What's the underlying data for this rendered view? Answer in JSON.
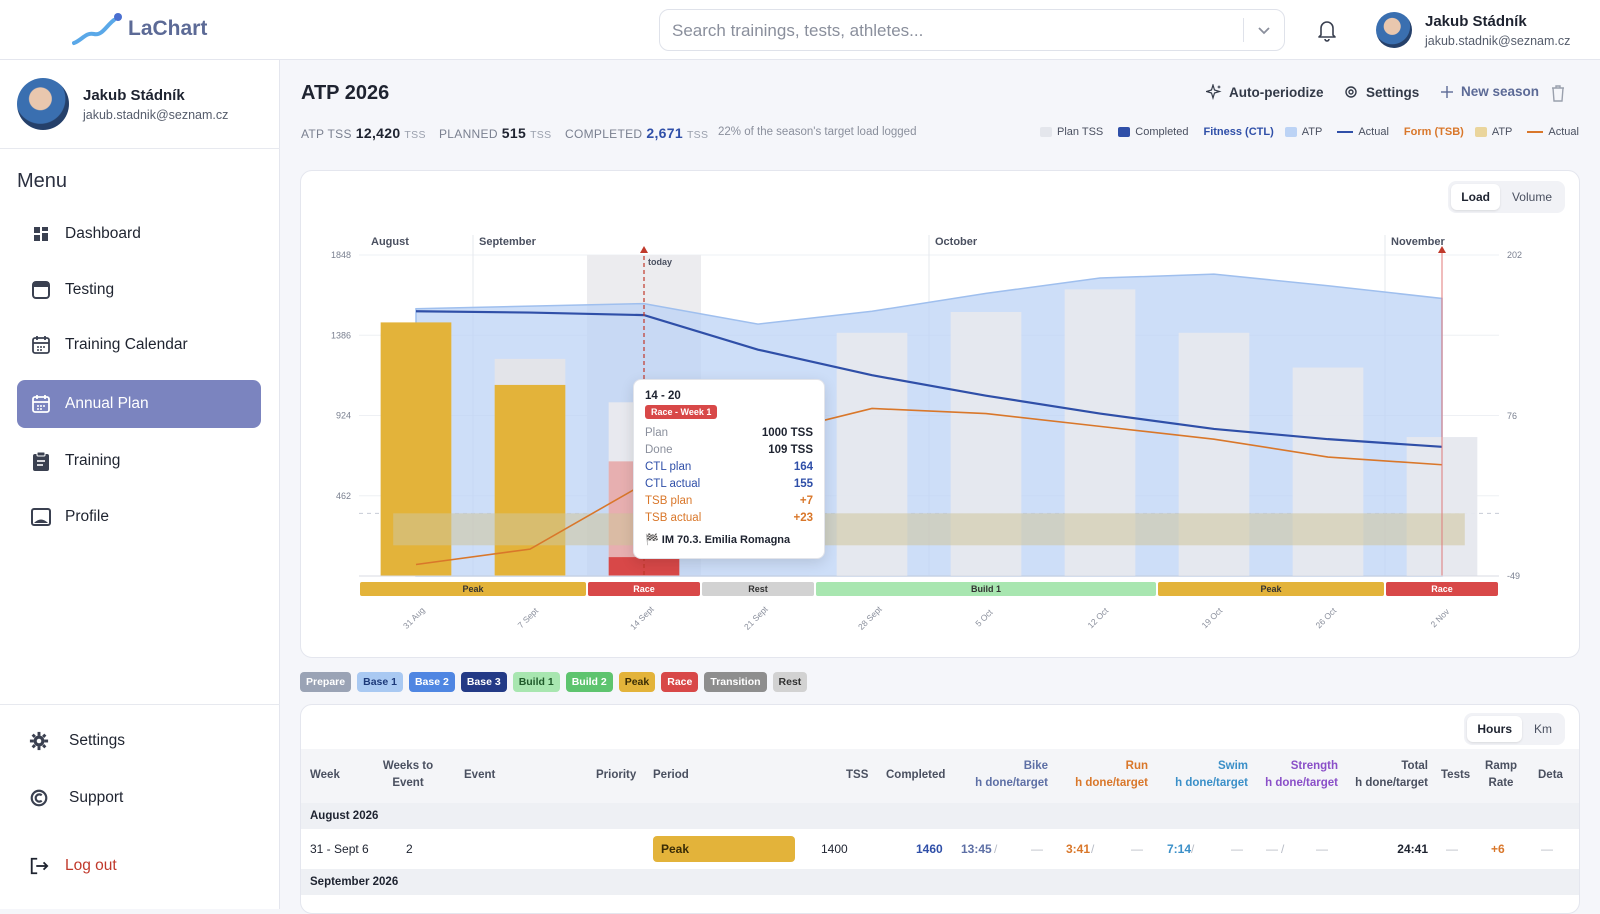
{
  "app": {
    "name": "LaChart"
  },
  "search": {
    "placeholder": "Search trainings, tests, athletes..."
  },
  "user": {
    "name": "Jakub Stádník",
    "email": "jakub.stadnik@seznam.cz"
  },
  "sidebar": {
    "menu_title": "Menu",
    "items": [
      {
        "label": "Dashboard",
        "icon": "dashboard-icon"
      },
      {
        "label": "Testing",
        "icon": "testing-icon"
      },
      {
        "label": "Training Calendar",
        "icon": "calendar-icon"
      },
      {
        "label": "Annual Plan",
        "icon": "calendar-icon",
        "active": true
      },
      {
        "label": "Training",
        "icon": "clipboard-icon"
      },
      {
        "label": "Profile",
        "icon": "profile-icon"
      }
    ],
    "bottom": [
      {
        "label": "Settings",
        "icon": "gear-icon"
      },
      {
        "label": "Support",
        "icon": "support-icon"
      },
      {
        "label": "Log out",
        "icon": "logout-icon"
      }
    ]
  },
  "page": {
    "title": "ATP 2026",
    "actions": {
      "autoperiodize": "Auto-periodize",
      "settings": "Settings",
      "new_season": "New season"
    },
    "stats": {
      "atp_label": "ATP TSS",
      "atp_value": "12,420",
      "unit": "TSS",
      "planned_label": "PLANNED",
      "planned_value": "515",
      "completed_label": "COMPLETED",
      "completed_value": "2,671",
      "note": "22% of the season's target load logged"
    },
    "legend": {
      "plan_tss": "Plan TSS",
      "completed": "Completed",
      "fitness": "Fitness (CTL)",
      "atp": "ATP",
      "actual": "Actual",
      "form": "Form (TSB)"
    },
    "chart_toggle": {
      "load": "Load",
      "volume": "Volume"
    }
  },
  "colors": {
    "accent": "#7b84bf",
    "peak": "#e3b33a",
    "race": "#d84848",
    "rest": "#d2d2d2",
    "build1": "#a8e6b0",
    "ctl": "#2f4fa8",
    "tsb": "#d9772a",
    "atp_fill": "#bcd3f5"
  },
  "chart_data": {
    "type": "bar",
    "months": [
      "August",
      "September",
      "October",
      "November"
    ],
    "categories": [
      "31 Aug",
      "7 Sept",
      "14 Sept",
      "21 Sept",
      "28 Sept",
      "5 Oct",
      "12 Oct",
      "19 Oct",
      "26 Oct",
      "2 Nov"
    ],
    "y_ticks_left": [
      "1848",
      "1386",
      "924",
      "462"
    ],
    "y_ticks_right": [
      "202",
      "76",
      "-49"
    ],
    "ylim_left": [
      0,
      1848
    ],
    "ylim_right": [
      -49,
      202
    ],
    "today_label": "today",
    "series": [
      {
        "name": "Plan TSS",
        "values": [
          1400,
          1250,
          1000,
          0,
          1400,
          1520,
          1650,
          1400,
          1200,
          800
        ]
      },
      {
        "name": "Completed",
        "values": [
          1460,
          1100,
          109,
          0,
          0,
          0,
          0,
          0,
          0,
          0
        ]
      },
      {
        "name": "Fitness (CTL) ATP",
        "values": [
          160,
          162,
          164,
          148,
          158,
          172,
          184,
          187,
          178,
          168
        ]
      },
      {
        "name": "Fitness (CTL) Actual",
        "values": [
          158,
          157,
          155,
          128,
          108,
          92,
          78,
          66,
          58,
          52
        ]
      },
      {
        "name": "Form (TSB) Actual",
        "values": [
          -40,
          -28,
          23,
          60,
          82,
          78,
          68,
          58,
          44,
          38
        ]
      }
    ],
    "phases": [
      {
        "label": "Peak",
        "weeks": 2,
        "color": "#e3b33a"
      },
      {
        "label": "Race",
        "weeks": 1,
        "color": "#d84848"
      },
      {
        "label": "Rest",
        "weeks": 1,
        "color": "#d2d2d2"
      },
      {
        "label": "Build 1",
        "weeks": 3,
        "color": "#a8e6b0"
      },
      {
        "label": "Peak",
        "weeks": 2,
        "color": "#e3b33a"
      },
      {
        "label": "Race",
        "weeks": 1,
        "color": "#d84848"
      }
    ]
  },
  "tooltip": {
    "title": "14 - 20",
    "badge": "Race - Week 1",
    "rows": [
      {
        "k": "Plan",
        "v": "1000 TSS",
        "kind": ""
      },
      {
        "k": "Done",
        "v": "109 TSS",
        "kind": ""
      },
      {
        "k": "CTL plan",
        "v": "164",
        "kind": "ctl"
      },
      {
        "k": "CTL actual",
        "v": "155",
        "kind": "ctl"
      },
      {
        "k": "TSB plan",
        "v": "+7",
        "kind": "tsb"
      },
      {
        "k": "TSB actual",
        "v": "+23",
        "kind": "tsb"
      }
    ],
    "event": "IM 70.3. Emilia Romagna"
  },
  "phase_chips": [
    {
      "label": "Prepare",
      "bg": "#9aa3b5",
      "fg": "#fff"
    },
    {
      "label": "Base 1",
      "bg": "#a9c9f2",
      "fg": "#1d3a7a"
    },
    {
      "label": "Base 2",
      "bg": "#4f86e2",
      "fg": "#fff"
    },
    {
      "label": "Base 3",
      "bg": "#233a86",
      "fg": "#fff"
    },
    {
      "label": "Build 1",
      "bg": "#a8e6b0",
      "fg": "#1f5a2a"
    },
    {
      "label": "Build 2",
      "bg": "#5ec46f",
      "fg": "#fff"
    },
    {
      "label": "Peak",
      "bg": "#e3b33a",
      "fg": "#3a2c05"
    },
    {
      "label": "Race",
      "bg": "#d84848",
      "fg": "#fff"
    },
    {
      "label": "Transition",
      "bg": "#8e8e8e",
      "fg": "#fff"
    },
    {
      "label": "Rest",
      "bg": "#d2d2d2",
      "fg": "#333"
    }
  ],
  "table": {
    "toggle": {
      "hours": "Hours",
      "km": "Km"
    },
    "headers": {
      "week": "Week",
      "weeks_to_event": "Weeks to",
      "weeks_to_event2": "Event",
      "event": "Event",
      "priority": "Priority",
      "period": "Period",
      "tss": "TSS",
      "completed": "Completed",
      "bike": "Bike",
      "run": "Run",
      "swim": "Swim",
      "strength": "Strength",
      "total": "Total",
      "sub": "h done/target",
      "tests": "Tests",
      "ramp": "Ramp",
      "ramp2": "Rate",
      "details": "Deta"
    },
    "groups": [
      "August 2026",
      "September 2026"
    ],
    "row": {
      "week": "31 - Sept 6",
      "weeks_to_event": "2",
      "period": "Peak",
      "tss": "1400",
      "completed": "1460",
      "bike": "13:45",
      "bike_t": "—",
      "run": "3:41",
      "run_t": "—",
      "swim": "7:14",
      "swim_t": "—",
      "strength": "—",
      "strength_t": "—",
      "total": "24:41",
      "tests": "—",
      "ramp": "+6",
      "details": "—"
    }
  }
}
